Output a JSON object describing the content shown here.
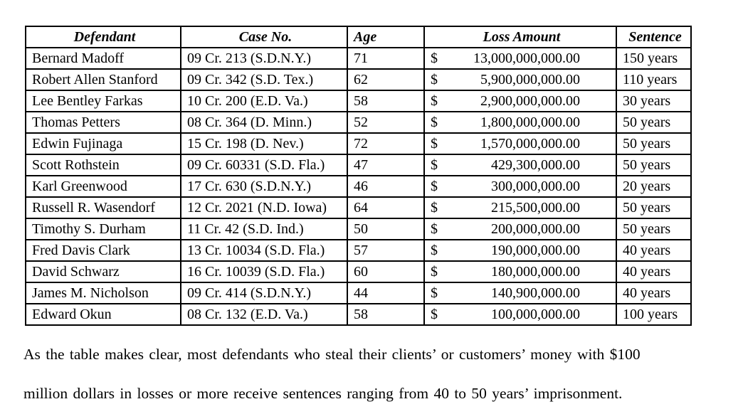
{
  "table": {
    "columns": [
      "Defendant",
      "Case No.",
      "Age",
      "Loss Amount",
      "Sentence"
    ],
    "rows": [
      {
        "defendant": "Bernard Madoff",
        "case_no": "09 Cr. 213 (S.D.N.Y.)",
        "age": "71",
        "currency": "$",
        "loss_amount": "13,000,000,000.00",
        "sentence": "150 years"
      },
      {
        "defendant": "Robert Allen Stanford",
        "case_no": "09 Cr. 342 (S.D. Tex.)",
        "age": "62",
        "currency": "$",
        "loss_amount": "5,900,000,000.00",
        "sentence": "110 years"
      },
      {
        "defendant": "Lee Bentley Farkas",
        "case_no": "10 Cr. 200 (E.D. Va.)",
        "age": "58",
        "currency": "$",
        "loss_amount": "2,900,000,000.00",
        "sentence": "30 years"
      },
      {
        "defendant": "Thomas Petters",
        "case_no": "08 Cr. 364 (D. Minn.)",
        "age": "52",
        "currency": "$",
        "loss_amount": "1,800,000,000.00",
        "sentence": "50 years"
      },
      {
        "defendant": "Edwin Fujinaga",
        "case_no": "15 Cr. 198 (D. Nev.)",
        "age": "72",
        "currency": "$",
        "loss_amount": "1,570,000,000.00",
        "sentence": "50 years"
      },
      {
        "defendant": "Scott Rothstein",
        "case_no": "09 Cr. 60331 (S.D. Fla.)",
        "age": "47",
        "currency": "$",
        "loss_amount": "429,300,000.00",
        "sentence": "50 years"
      },
      {
        "defendant": "Karl Greenwood",
        "case_no": "17 Cr. 630 (S.D.N.Y.)",
        "age": "46",
        "currency": "$",
        "loss_amount": "300,000,000.00",
        "sentence": "20 years"
      },
      {
        "defendant": "Russell R. Wasendorf",
        "case_no": "12 Cr. 2021 (N.D. Iowa)",
        "age": "64",
        "currency": "$",
        "loss_amount": "215,500,000.00",
        "sentence": "50 years"
      },
      {
        "defendant": "Timothy S. Durham",
        "case_no": "11 Cr. 42 (S.D. Ind.)",
        "age": "50",
        "currency": "$",
        "loss_amount": "200,000,000.00",
        "sentence": "50 years"
      },
      {
        "defendant": "Fred Davis Clark",
        "case_no": "13 Cr. 10034 (S.D. Fla.)",
        "age": "57",
        "currency": "$",
        "loss_amount": "190,000,000.00",
        "sentence": "40 years"
      },
      {
        "defendant": "David Schwarz",
        "case_no": "16 Cr. 10039 (S.D. Fla.)",
        "age": "60",
        "currency": "$",
        "loss_amount": "180,000,000.00",
        "sentence": "40 years"
      },
      {
        "defendant": "James M. Nicholson",
        "case_no": "09 Cr. 414 (S.D.N.Y.)",
        "age": "44",
        "currency": "$",
        "loss_amount": "140,900,000.00",
        "sentence": "40 years"
      },
      {
        "defendant": "Edward Okun",
        "case_no": "08 Cr. 132 (E.D. Va.)",
        "age": "58",
        "currency": "$",
        "loss_amount": "100,000,000.00",
        "sentence": "100 years"
      }
    ]
  },
  "paragraph": {
    "line1": "As the table makes clear, most defendants who steal their clients’ or customers’ money with $100",
    "line2": "million dollars in losses or more receive sentences ranging from 40 to 50 years’ imprisonment."
  },
  "colors": {
    "text": "#000000",
    "background": "#ffffff",
    "table_border": "#000000"
  }
}
